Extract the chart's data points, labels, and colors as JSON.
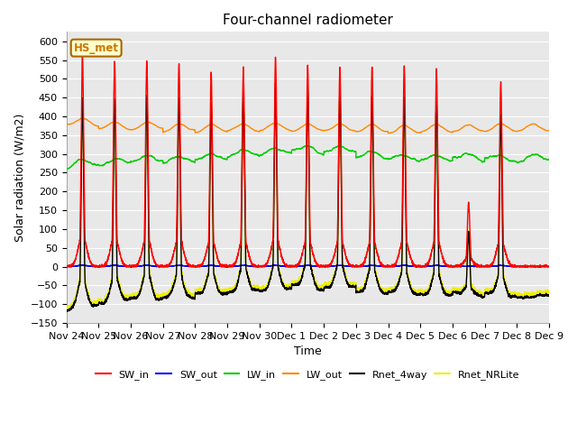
{
  "title": "Four-channel radiometer",
  "xlabel": "Time",
  "ylabel": "Solar radiation (W/m2)",
  "ylim": [
    -150,
    625
  ],
  "yticks": [
    -150,
    -100,
    -50,
    0,
    50,
    100,
    150,
    200,
    250,
    300,
    350,
    400,
    450,
    500,
    550,
    600
  ],
  "num_days": 15,
  "x_tick_labels": [
    "Nov 24",
    "Nov 25",
    "Nov 26",
    "Nov 27",
    "Nov 28",
    "Nov 29",
    "Nov 30",
    "Dec 1",
    "Dec 2",
    "Dec 3",
    "Dec 4",
    "Dec 5",
    "Dec 6",
    "Dec 7",
    "Dec 8",
    "Dec 9"
  ],
  "station_label": "HS_met",
  "station_label_color": "#cc7700",
  "station_label_bg": "#ffffcc",
  "station_label_border": "#aa6600",
  "background_color": "#e8e8e8",
  "grid_color": "#ffffff",
  "series": [
    {
      "name": "SW_in",
      "color": "#ff0000",
      "lw": 1.0,
      "zorder": 5
    },
    {
      "name": "SW_out",
      "color": "#0000ff",
      "lw": 1.0,
      "zorder": 4
    },
    {
      "name": "LW_in",
      "color": "#00cc00",
      "lw": 1.0,
      "zorder": 3
    },
    {
      "name": "LW_out",
      "color": "#ff8800",
      "lw": 1.0,
      "zorder": 3
    },
    {
      "name": "Rnet_4way",
      "color": "#000000",
      "lw": 1.0,
      "zorder": 4
    },
    {
      "name": "Rnet_NRLite",
      "color": "#eeee00",
      "lw": 1.0,
      "zorder": 3
    }
  ],
  "day_peaks_SW": [
    565,
    545,
    545,
    540,
    515,
    525,
    555,
    535,
    530,
    530,
    535,
    525,
    170,
    490,
    0
  ],
  "lw_out_base": [
    375,
    365,
    365,
    360,
    358,
    360,
    362,
    360,
    360,
    358,
    355,
    358,
    358,
    360,
    360
  ],
  "lw_in_base": [
    268,
    272,
    280,
    278,
    285,
    295,
    300,
    305,
    305,
    290,
    283,
    282,
    285,
    282,
    282
  ],
  "pts_per_day": 288
}
